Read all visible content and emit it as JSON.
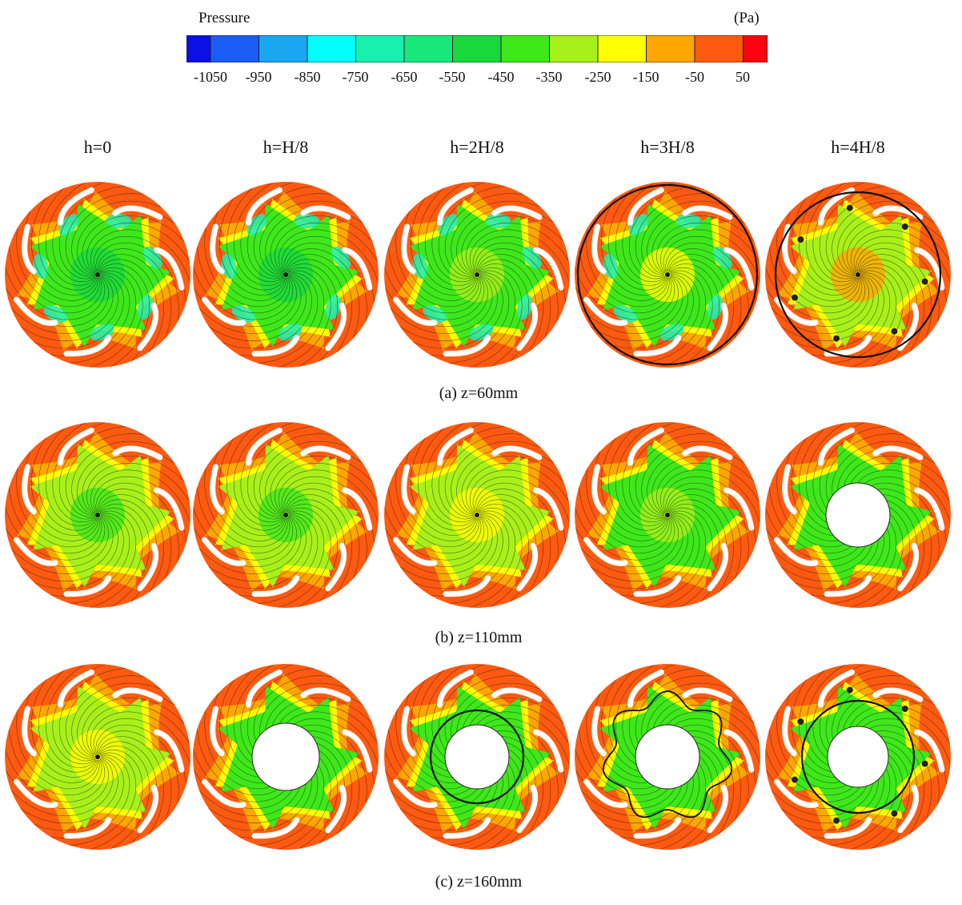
{
  "legend": {
    "title": "Pressure",
    "unit": "(Pa)",
    "ticks": [
      "-1050",
      "-950",
      "-850",
      "-750",
      "-650",
      "-550",
      "-450",
      "-350",
      "-250",
      "-150",
      "-50",
      "50"
    ],
    "colors": [
      "#0a10e6",
      "#1a5cf5",
      "#1aa6f0",
      "#00ffff",
      "#18f0b0",
      "#18e87a",
      "#19d83c",
      "#3ee81a",
      "#a8f01a",
      "#ffff00",
      "#ffa600",
      "#ff5a10",
      "#ff0010"
    ]
  },
  "columns": [
    "h=0",
    "h=H/8",
    "h=2H/8",
    "h=3H/8",
    "h=4H/8"
  ],
  "rows": [
    {
      "caption": "(a) z=60mm"
    },
    {
      "caption": "(b) z=110mm"
    },
    {
      "caption": "(c) z=160mm"
    }
  ]
}
